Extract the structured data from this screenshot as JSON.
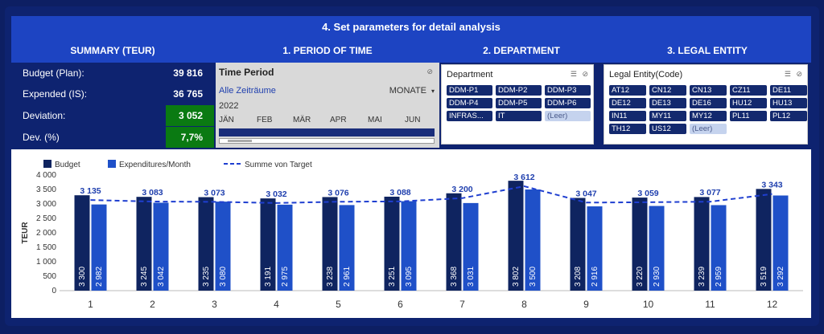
{
  "header": {
    "title": "4. Set parameters for detail analysis",
    "sections": [
      "SUMMARY (TEUR)",
      "1. PERIOD OF TIME",
      "2. DEPARTMENT",
      "3. LEGAL ENTITY"
    ]
  },
  "summary": {
    "rows": [
      {
        "label": "Budget (Plan):",
        "value": "39 816"
      },
      {
        "label": "Expended (IS):",
        "value": "36 765"
      },
      {
        "label": "Deviation:",
        "value": "3 052"
      },
      {
        "label": "Dev. (%)",
        "value": "7,7%"
      }
    ],
    "highlight_color": "#0a7a12"
  },
  "time_period": {
    "title": "Time Period",
    "all_periods": "Alle Zeiträume",
    "granularity": "MONATE",
    "year": "2022",
    "months": [
      "JÄN",
      "FEB",
      "MÄR",
      "APR",
      "MAI",
      "JUN"
    ]
  },
  "department": {
    "title": "Department",
    "items": [
      {
        "label": "DDM-P1",
        "selected": true
      },
      {
        "label": "DDM-P2",
        "selected": true
      },
      {
        "label": "DDM-P3",
        "selected": true
      },
      {
        "label": "DDM-P4",
        "selected": true
      },
      {
        "label": "DDM-P5",
        "selected": true
      },
      {
        "label": "DDM-P6",
        "selected": true
      },
      {
        "label": "INFRAS...",
        "selected": true
      },
      {
        "label": "IT",
        "selected": true
      },
      {
        "label": "(Leer)",
        "selected": false
      }
    ]
  },
  "legal_entity": {
    "title": "Legal Entity(Code)",
    "items": [
      {
        "label": "AT12",
        "selected": true
      },
      {
        "label": "CN12",
        "selected": true
      },
      {
        "label": "CN13",
        "selected": true
      },
      {
        "label": "CZ11",
        "selected": true
      },
      {
        "label": "DE11",
        "selected": true
      },
      {
        "label": "DE12",
        "selected": true
      },
      {
        "label": "DE13",
        "selected": true
      },
      {
        "label": "DE16",
        "selected": true
      },
      {
        "label": "HU12",
        "selected": true
      },
      {
        "label": "HU13",
        "selected": true
      },
      {
        "label": "IN11",
        "selected": true
      },
      {
        "label": "MY11",
        "selected": true
      },
      {
        "label": "MY12",
        "selected": true
      },
      {
        "label": "PL11",
        "selected": true
      },
      {
        "label": "PL12",
        "selected": true
      },
      {
        "label": "TH12",
        "selected": true
      },
      {
        "label": "US12",
        "selected": true
      },
      {
        "label": "(Leer)",
        "selected": false
      }
    ]
  },
  "colors": {
    "budget": "#0f2460",
    "expenditures": "#1f50c8",
    "target": "#1f3fd0",
    "label": "#1f3fae"
  },
  "chart_data": {
    "type": "bar",
    "categories": [
      "1",
      "2",
      "3",
      "4",
      "5",
      "6",
      "7",
      "8",
      "9",
      "10",
      "11",
      "12"
    ],
    "series": [
      {
        "name": "Budget",
        "values": [
          3300,
          3245,
          3235,
          3191,
          3238,
          3251,
          3368,
          3802,
          3208,
          3220,
          3239,
          3519
        ],
        "labels": [
          "3 300",
          "3 245",
          "3 235",
          "3 191",
          "3 238",
          "3 251",
          "3 368",
          "3 802",
          "3 208",
          "3 220",
          "3 239",
          "3 519"
        ]
      },
      {
        "name": "Expenditures/Month",
        "values": [
          2982,
          3042,
          3080,
          2975,
          2961,
          3095,
          3031,
          3500,
          2916,
          2930,
          2959,
          3292
        ],
        "labels": [
          "2 982",
          "3 042",
          "3 080",
          "2 975",
          "2 961",
          "3 095",
          "3 031",
          "3 500",
          "2 916",
          "2 930",
          "2 959",
          "3 292"
        ]
      },
      {
        "name": "Summe von Target",
        "values": [
          3135,
          3083,
          3073,
          3032,
          3076,
          3088,
          3200,
          3612,
          3047,
          3059,
          3077,
          3343
        ],
        "labels": [
          "3 135",
          "3 083",
          "3 073",
          "3 032",
          "3 076",
          "3 088",
          "3 200",
          "3 612",
          "3 047",
          "3 059",
          "3 077",
          "3 343"
        ]
      }
    ],
    "ylabel": "TEUR",
    "ylim": [
      0,
      4000
    ],
    "yticks": [
      0,
      500,
      1000,
      1500,
      2000,
      2500,
      3000,
      3500,
      4000
    ],
    "ytick_labels": [
      "0",
      "500",
      "1 000",
      "1 500",
      "2 000",
      "2 500",
      "3 000",
      "3 500",
      "4 000"
    ],
    "legend_position": "top-left"
  }
}
